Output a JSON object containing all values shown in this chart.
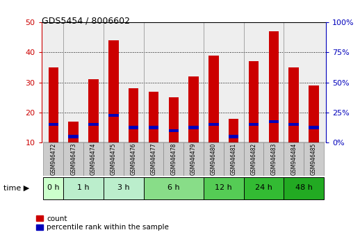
{
  "title": "GDS5454 / 8006602",
  "samples": [
    "GSM946472",
    "GSM946473",
    "GSM946474",
    "GSM946475",
    "GSM946476",
    "GSM946477",
    "GSM946478",
    "GSM946479",
    "GSM946480",
    "GSM946481",
    "GSM946482",
    "GSM946483",
    "GSM946484",
    "GSM946485"
  ],
  "count_values": [
    35,
    17,
    31,
    44,
    28,
    27,
    25,
    32,
    39,
    18,
    37,
    47,
    35,
    29
  ],
  "percentile_values": [
    16,
    12,
    16,
    19,
    15,
    15,
    14,
    15,
    16,
    12,
    16,
    17,
    16,
    15
  ],
  "group_spans": [
    {
      "label": "0 h",
      "start": 0,
      "end": 0,
      "color": "#ccffcc"
    },
    {
      "label": "1 h",
      "start": 1,
      "end": 2,
      "color": "#bbeecc"
    },
    {
      "label": "3 h",
      "start": 3,
      "end": 4,
      "color": "#bbeecc"
    },
    {
      "label": "6 h",
      "start": 5,
      "end": 7,
      "color": "#88dd88"
    },
    {
      "label": "12 h",
      "start": 8,
      "end": 9,
      "color": "#55cc55"
    },
    {
      "label": "24 h",
      "start": 10,
      "end": 11,
      "color": "#33bb33"
    },
    {
      "label": "48 h",
      "start": 12,
      "end": 13,
      "color": "#22aa22"
    }
  ],
  "group_boundaries": [
    0.5,
    2.5,
    4.5,
    7.5,
    9.5,
    11.5
  ],
  "bar_width": 0.5,
  "count_color": "#cc0000",
  "percentile_color": "#0000bb",
  "ylim_left": [
    10,
    50
  ],
  "ylim_right": [
    0,
    100
  ],
  "yticks_left": [
    10,
    20,
    30,
    40,
    50
  ],
  "yticks_right": [
    0,
    25,
    50,
    75,
    100
  ],
  "background_plot": "#eeeeee",
  "background_label": "#cccccc",
  "legend_label_count": "count",
  "legend_label_perc": "percentile rank within the sample"
}
